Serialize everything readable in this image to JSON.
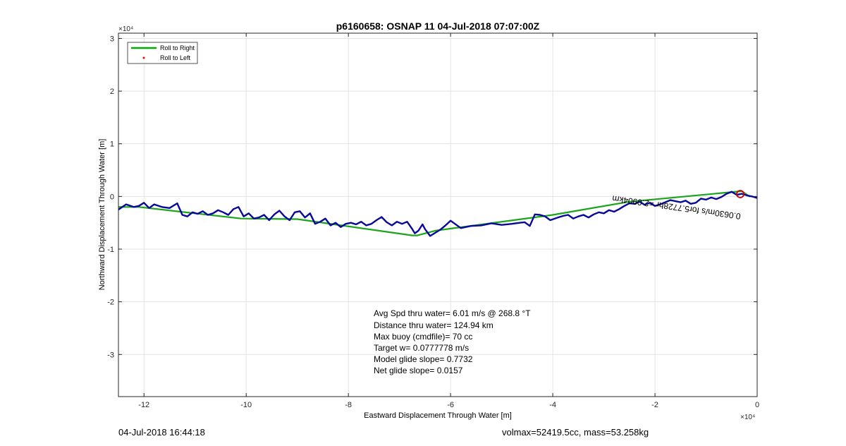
{
  "chart_data": {
    "type": "line",
    "title": "p6160658: OSNAP 11 04-Jul-2018 07:07:00Z",
    "xlabel": "Eastward Displacement Through Water [m]",
    "ylabel": "Northward Displacement Through Water [m]",
    "x_exponent_label": "×10⁴",
    "y_exponent_label": "×10⁴",
    "xlim": [
      -125000,
      0
    ],
    "ylim": [
      -38000,
      31000
    ],
    "x_ticks": [
      -120000,
      -100000,
      -80000,
      -60000,
      -40000,
      -20000,
      0
    ],
    "x_tick_labels": [
      "-12",
      "-10",
      "-8",
      "-6",
      "-4",
      "-2",
      "0"
    ],
    "y_ticks": [
      -30000,
      -20000,
      -10000,
      0,
      10000,
      20000,
      30000
    ],
    "y_tick_labels": [
      "-3",
      "-2",
      "-1",
      "0",
      "1",
      "2",
      "3"
    ],
    "grid": true,
    "legend_placement": "top-left",
    "legend": [
      {
        "label": "Roll to Right",
        "color": "#00aa00",
        "marker": "line"
      },
      {
        "label": "Roll to Left",
        "color": "#ff0000",
        "marker": "dot"
      }
    ],
    "series": [
      {
        "color": "#1aa51a",
        "x": [
          -125000,
          -121000,
          -101000,
          -90000,
          -67500,
          -66500,
          -63000,
          -40000,
          -25000,
          -3000,
          -1500
        ],
        "y": [
          -2000,
          -2000,
          -4200,
          -4300,
          -7400,
          -7400,
          -6500,
          -3500,
          -1000,
          1000,
          0
        ]
      },
      {
        "color": "#08089a",
        "x": [
          -125000,
          -123500,
          -122000,
          -121000,
          -120000,
          -119000,
          -118000,
          -116500,
          -115000,
          -113500,
          -112500,
          -111500,
          -110500,
          -109500,
          -108500,
          -107500,
          -106500,
          -105500,
          -104500,
          -103500,
          -102500,
          -101500,
          -100500,
          -99500,
          -98500,
          -97500,
          -96500,
          -95500,
          -94500,
          -93500,
          -92500,
          -91500,
          -90500,
          -89500,
          -88500,
          -87500,
          -86500,
          -85500,
          -84500,
          -83500,
          -82500,
          -81500,
          -80500,
          -79500,
          -78500,
          -77500,
          -76500,
          -75500,
          -74500,
          -73500,
          -72500,
          -71500,
          -70500,
          -69500,
          -68500,
          -67500,
          -67000,
          -66300,
          -65500,
          -65000,
          -64000,
          -63000,
          -62000,
          -61000,
          -60000,
          -58000,
          -56000,
          -54000,
          -52000,
          -50000,
          -48000,
          -46500,
          -45500,
          -44500,
          -43500,
          -42500,
          -41500,
          -40500,
          -39000,
          -38000,
          -37000,
          -36000,
          -35000,
          -34000,
          -33000,
          -32000,
          -31000,
          -30000,
          -29000,
          -28000,
          -27000,
          -26000,
          -25000,
          -24000,
          -23000,
          -22000,
          -21000,
          -20000,
          -19000,
          -18000,
          -17000,
          -16000,
          -15000,
          -14000,
          -13000,
          -12000,
          -11000,
          -10000,
          -9000,
          -8000,
          -7000,
          -6000,
          -5000,
          -4000,
          -3000,
          -2000,
          -1000,
          0
        ],
        "y": [
          -2500,
          -1500,
          -2000,
          -1800,
          -1200,
          -2200,
          -1500,
          -2000,
          -2200,
          -1300,
          -3500,
          -3800,
          -3000,
          -3300,
          -2800,
          -3500,
          -3200,
          -2600,
          -3000,
          -3500,
          -2400,
          -2000,
          -3800,
          -3200,
          -4200,
          -4000,
          -3500,
          -4500,
          -3400,
          -2700,
          -3800,
          -4500,
          -3000,
          -2800,
          -4000,
          -3200,
          -5200,
          -4800,
          -4200,
          -5500,
          -5000,
          -5800,
          -5200,
          -5000,
          -5300,
          -4800,
          -5500,
          -5200,
          -4500,
          -3900,
          -4900,
          -5500,
          -4800,
          -5200,
          -4800,
          -6200,
          -7000,
          -6500,
          -5300,
          -6200,
          -7500,
          -6900,
          -6300,
          -5500,
          -4600,
          -6000,
          -5600,
          -5500,
          -5100,
          -5400,
          -5200,
          -5000,
          -4900,
          -5600,
          -3400,
          -3500,
          -3800,
          -4500,
          -4000,
          -3700,
          -3500,
          -4200,
          -3800,
          -3500,
          -4000,
          -3400,
          -3000,
          -3200,
          -2600,
          -2900,
          -2400,
          -1800,
          -1300,
          -1400,
          -1000,
          -1600,
          -1200,
          -1800,
          -1500,
          -1100,
          -700,
          -900,
          -1100,
          -800,
          -1400,
          -1200,
          -400,
          -600,
          -200,
          -500,
          -100,
          500,
          900,
          300,
          500,
          200,
          0,
          -300
        ]
      }
    ],
    "annotations": [
      "Avg Spd thru water=  6.01 m/s @ 268.8 °T",
      "Distance thru water= 124.94 km",
      "Max buoy (cmdfile)= 70 cc",
      "Target w= 0.0777778 m/s",
      "Model glide slope= 0.7732",
      "Net glide slope= 0.0157"
    ],
    "overlay_label": "0.0630m/s for5.7728hr =2.0904km"
  },
  "footer": {
    "left": "04-Jul-2018 16:44:18",
    "right": "volmax=52419.5cc, mass=53.258kg"
  }
}
